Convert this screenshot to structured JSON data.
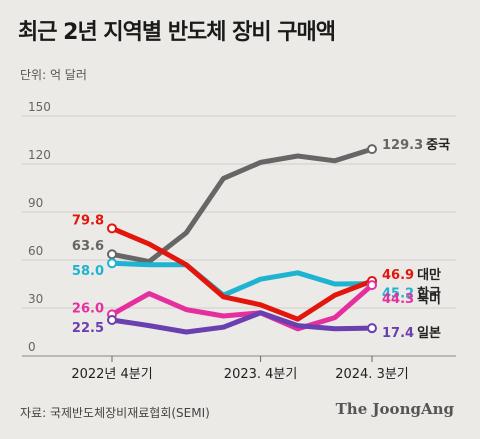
{
  "title": "최근 2년 지역별 반도체 장비 구매액",
  "unit_label": "단위: 억 달러",
  "source": "자료: 국제반도체장비재료협회(SEMI)",
  "brand": "The JoongAng",
  "chart_data": {
    "type": "line",
    "title": "최근 2년 지역별 반도체 장비 구매액",
    "ylabel": "단위: 억 달러",
    "ylim": [
      0,
      150
    ],
    "yticks": [
      0,
      30,
      60,
      90,
      120,
      150
    ],
    "x": [
      0,
      1,
      2,
      3,
      4,
      5,
      6,
      7
    ],
    "xlim": [
      0,
      7
    ],
    "xtick_labels": [
      {
        "x": 0,
        "label": "2022년 4분기"
      },
      {
        "x": 4,
        "label": "2023. 4분기"
      },
      {
        "x": 7,
        "label": "2024. 3분기"
      }
    ],
    "grid": true,
    "series": [
      {
        "name": "중국",
        "color": "#666666",
        "values": [
          63.6,
          59,
          77,
          111,
          121,
          125,
          122,
          129.3
        ],
        "start_label": "63.6",
        "end_label": "129.3"
      },
      {
        "name": "한국",
        "color": "#1fb3d2",
        "values": [
          58.0,
          57,
          57,
          38,
          48,
          52,
          45,
          45.2
        ],
        "start_label": "58.0",
        "end_label": "45.2"
      },
      {
        "name": "대만",
        "color": "#e2160c",
        "values": [
          79.8,
          70,
          57,
          37,
          32,
          23,
          38,
          46.9
        ],
        "start_label": "79.8",
        "end_label": "46.9"
      },
      {
        "name": "북미",
        "color": "#e62f9f",
        "values": [
          26.0,
          39,
          29,
          25,
          27,
          17,
          24,
          44.3
        ],
        "start_label": "26.0",
        "end_label": "44.3"
      },
      {
        "name": "일본",
        "color": "#6a3fb0",
        "values": [
          22.5,
          19,
          15,
          18,
          27,
          19,
          17,
          17.4
        ],
        "start_label": "22.5",
        "end_label": "17.4"
      }
    ]
  }
}
